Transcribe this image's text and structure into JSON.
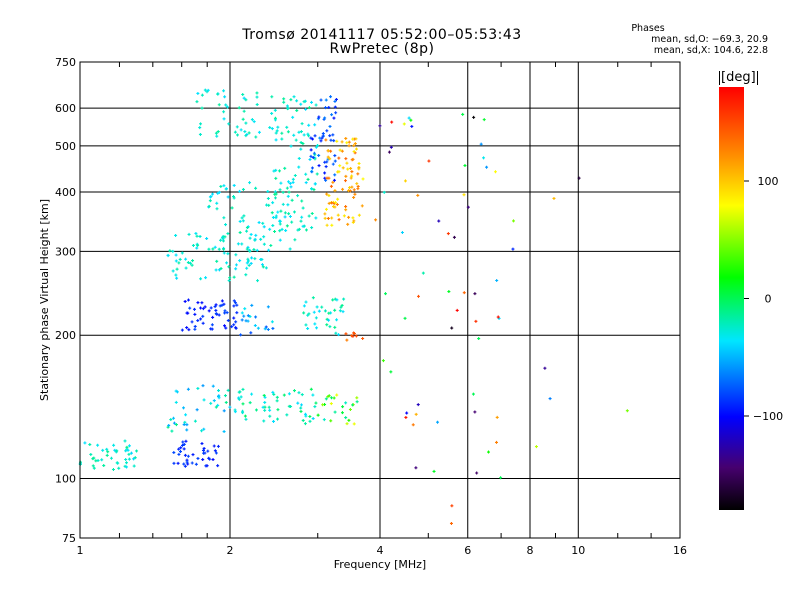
{
  "title_line1": "Tromsø 20141117 05:52:00–05:53:43",
  "title_line2": "RwPretec (8p)",
  "stats": {
    "header": "Phases",
    "line_o": "mean, sd,O: −69.3, 20.9",
    "line_x": "mean, sd,X: 104.6, 22.8"
  },
  "colorbar": {
    "unit": "[deg]",
    "min": -180,
    "max": 180,
    "ticks": [
      {
        "label": "100",
        "value": 100
      },
      {
        "label": "0",
        "value": 0
      },
      {
        "label": "−100",
        "value": -100
      }
    ]
  },
  "chart_data": {
    "type": "scatter",
    "title": "Tromsø 20141117 05:52:00–05:53:43",
    "subtitle": "RwPretec (8p)",
    "xlabel": "Frequency [MHz]",
    "ylabel": "Stationary phase Virtual Height [km]",
    "xscale": "log",
    "yscale": "log",
    "xlim": [
      1,
      16
    ],
    "ylim": [
      75,
      750
    ],
    "grid": true,
    "x_ticks": [
      {
        "label": "1",
        "value": 1
      },
      {
        "label": "2",
        "value": 2
      },
      {
        "label": "4",
        "value": 4
      },
      {
        "label": "6",
        "value": 6
      },
      {
        "label": "8",
        "value": 8
      },
      {
        "label": "10",
        "value": 10
      },
      {
        "label": "16",
        "value": 16
      }
    ],
    "y_ticks": [
      {
        "label": "750",
        "value": 750
      },
      {
        "label": "600",
        "value": 600
      },
      {
        "label": "500",
        "value": 500
      },
      {
        "label": "400",
        "value": 400
      },
      {
        "label": "300",
        "value": 300
      },
      {
        "label": "200",
        "value": 200
      },
      {
        "label": "100",
        "value": 100
      },
      {
        "label": "75",
        "value": 75
      }
    ],
    "color_key": "phase (deg)",
    "clusters": [
      {
        "x": [
          1.0,
          1.3
        ],
        "y": [
          103,
          120
        ],
        "phase": [
          -40,
          -10
        ],
        "n": 45
      },
      {
        "x": [
          1.5,
          1.9
        ],
        "y": [
          106,
          120
        ],
        "phase": [
          -100,
          -80
        ],
        "n": 40
      },
      {
        "x": [
          1.5,
          2.1
        ],
        "y": [
          125,
          160
        ],
        "phase": [
          -60,
          -10
        ],
        "n": 45
      },
      {
        "x": [
          2.1,
          3.0
        ],
        "y": [
          130,
          155
        ],
        "phase": [
          -40,
          0
        ],
        "n": 50
      },
      {
        "x": [
          3.0,
          3.6
        ],
        "y": [
          130,
          150
        ],
        "phase": [
          -50,
          80
        ],
        "n": 25
      },
      {
        "x": [
          1.6,
          2.1
        ],
        "y": [
          205,
          240
        ],
        "phase": [
          -100,
          -80
        ],
        "n": 55
      },
      {
        "x": [
          2.1,
          2.5
        ],
        "y": [
          200,
          235
        ],
        "phase": [
          -80,
          -30
        ],
        "n": 20
      },
      {
        "x": [
          2.8,
          3.4
        ],
        "y": [
          200,
          240
        ],
        "phase": [
          -40,
          -10
        ],
        "n": 35
      },
      {
        "x": [
          3.4,
          3.7
        ],
        "y": [
          195,
          205
        ],
        "phase": [
          120,
          160
        ],
        "n": 8
      },
      {
        "x": [
          1.5,
          2.4
        ],
        "y": [
          260,
          330
        ],
        "phase": [
          -40,
          -15
        ],
        "n": 80
      },
      {
        "x": [
          1.8,
          2.7
        ],
        "y": [
          300,
          420
        ],
        "phase": [
          -40,
          -15
        ],
        "n": 70
      },
      {
        "x": [
          2.4,
          3.0
        ],
        "y": [
          330,
          640
        ],
        "phase": [
          -40,
          -10
        ],
        "n": 110
      },
      {
        "x": [
          2.9,
          3.3
        ],
        "y": [
          420,
          640
        ],
        "phase": [
          -100,
          -60
        ],
        "n": 50
      },
      {
        "x": [
          3.1,
          3.7
        ],
        "y": [
          340,
          520
        ],
        "phase": [
          80,
          140
        ],
        "n": 90
      },
      {
        "x": [
          1.7,
          2.3
        ],
        "y": [
          520,
          660
        ],
        "phase": [
          -40,
          -15
        ],
        "n": 45
      },
      {
        "x": [
          3.9,
          7.0
        ],
        "y": [
          80,
          600
        ],
        "phase": [
          -180,
          180
        ],
        "n": 60
      },
      {
        "x": [
          7.0,
          13.0
        ],
        "y": [
          100,
          560
        ],
        "phase": [
          -180,
          180
        ],
        "n": 8
      }
    ]
  }
}
